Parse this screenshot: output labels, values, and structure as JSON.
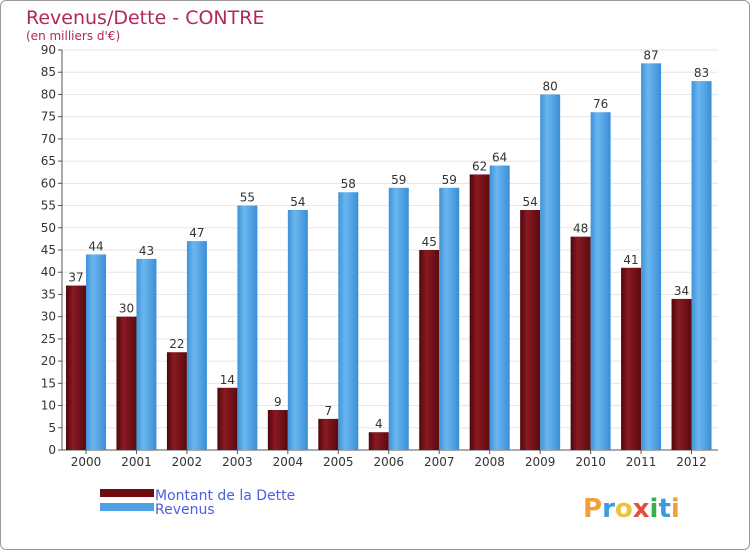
{
  "chart_data": {
    "type": "bar",
    "title": "Revenus/Dette - CONTRE",
    "subtitle": "(en milliers d'€)",
    "categories": [
      "2000",
      "2001",
      "2002",
      "2003",
      "2004",
      "2005",
      "2006",
      "2007",
      "2008",
      "2009",
      "2010",
      "2011",
      "2012"
    ],
    "series": [
      {
        "name": "Montant de la Dette",
        "values": [
          37,
          30,
          22,
          14,
          9,
          7,
          4,
          45,
          62,
          54,
          48,
          41,
          34
        ],
        "color": "#6e0c12"
      },
      {
        "name": "Revenus",
        "values": [
          44,
          43,
          47,
          55,
          54,
          58,
          59,
          59,
          64,
          80,
          76,
          87,
          83
        ],
        "color": "#4ea3e6"
      }
    ],
    "ylim": [
      0,
      90
    ],
    "yticks": [
      0,
      5,
      10,
      15,
      20,
      25,
      30,
      35,
      40,
      45,
      50,
      55,
      60,
      65,
      70,
      75,
      80,
      85,
      90
    ],
    "grid": true,
    "legend": "bottom-left"
  },
  "colors": {
    "title": "#b1275f",
    "legend_text": "#4a5fe0",
    "axis_text": "#333333",
    "grid": "#e6e6e6"
  },
  "logo": {
    "text": "Proxiti"
  }
}
